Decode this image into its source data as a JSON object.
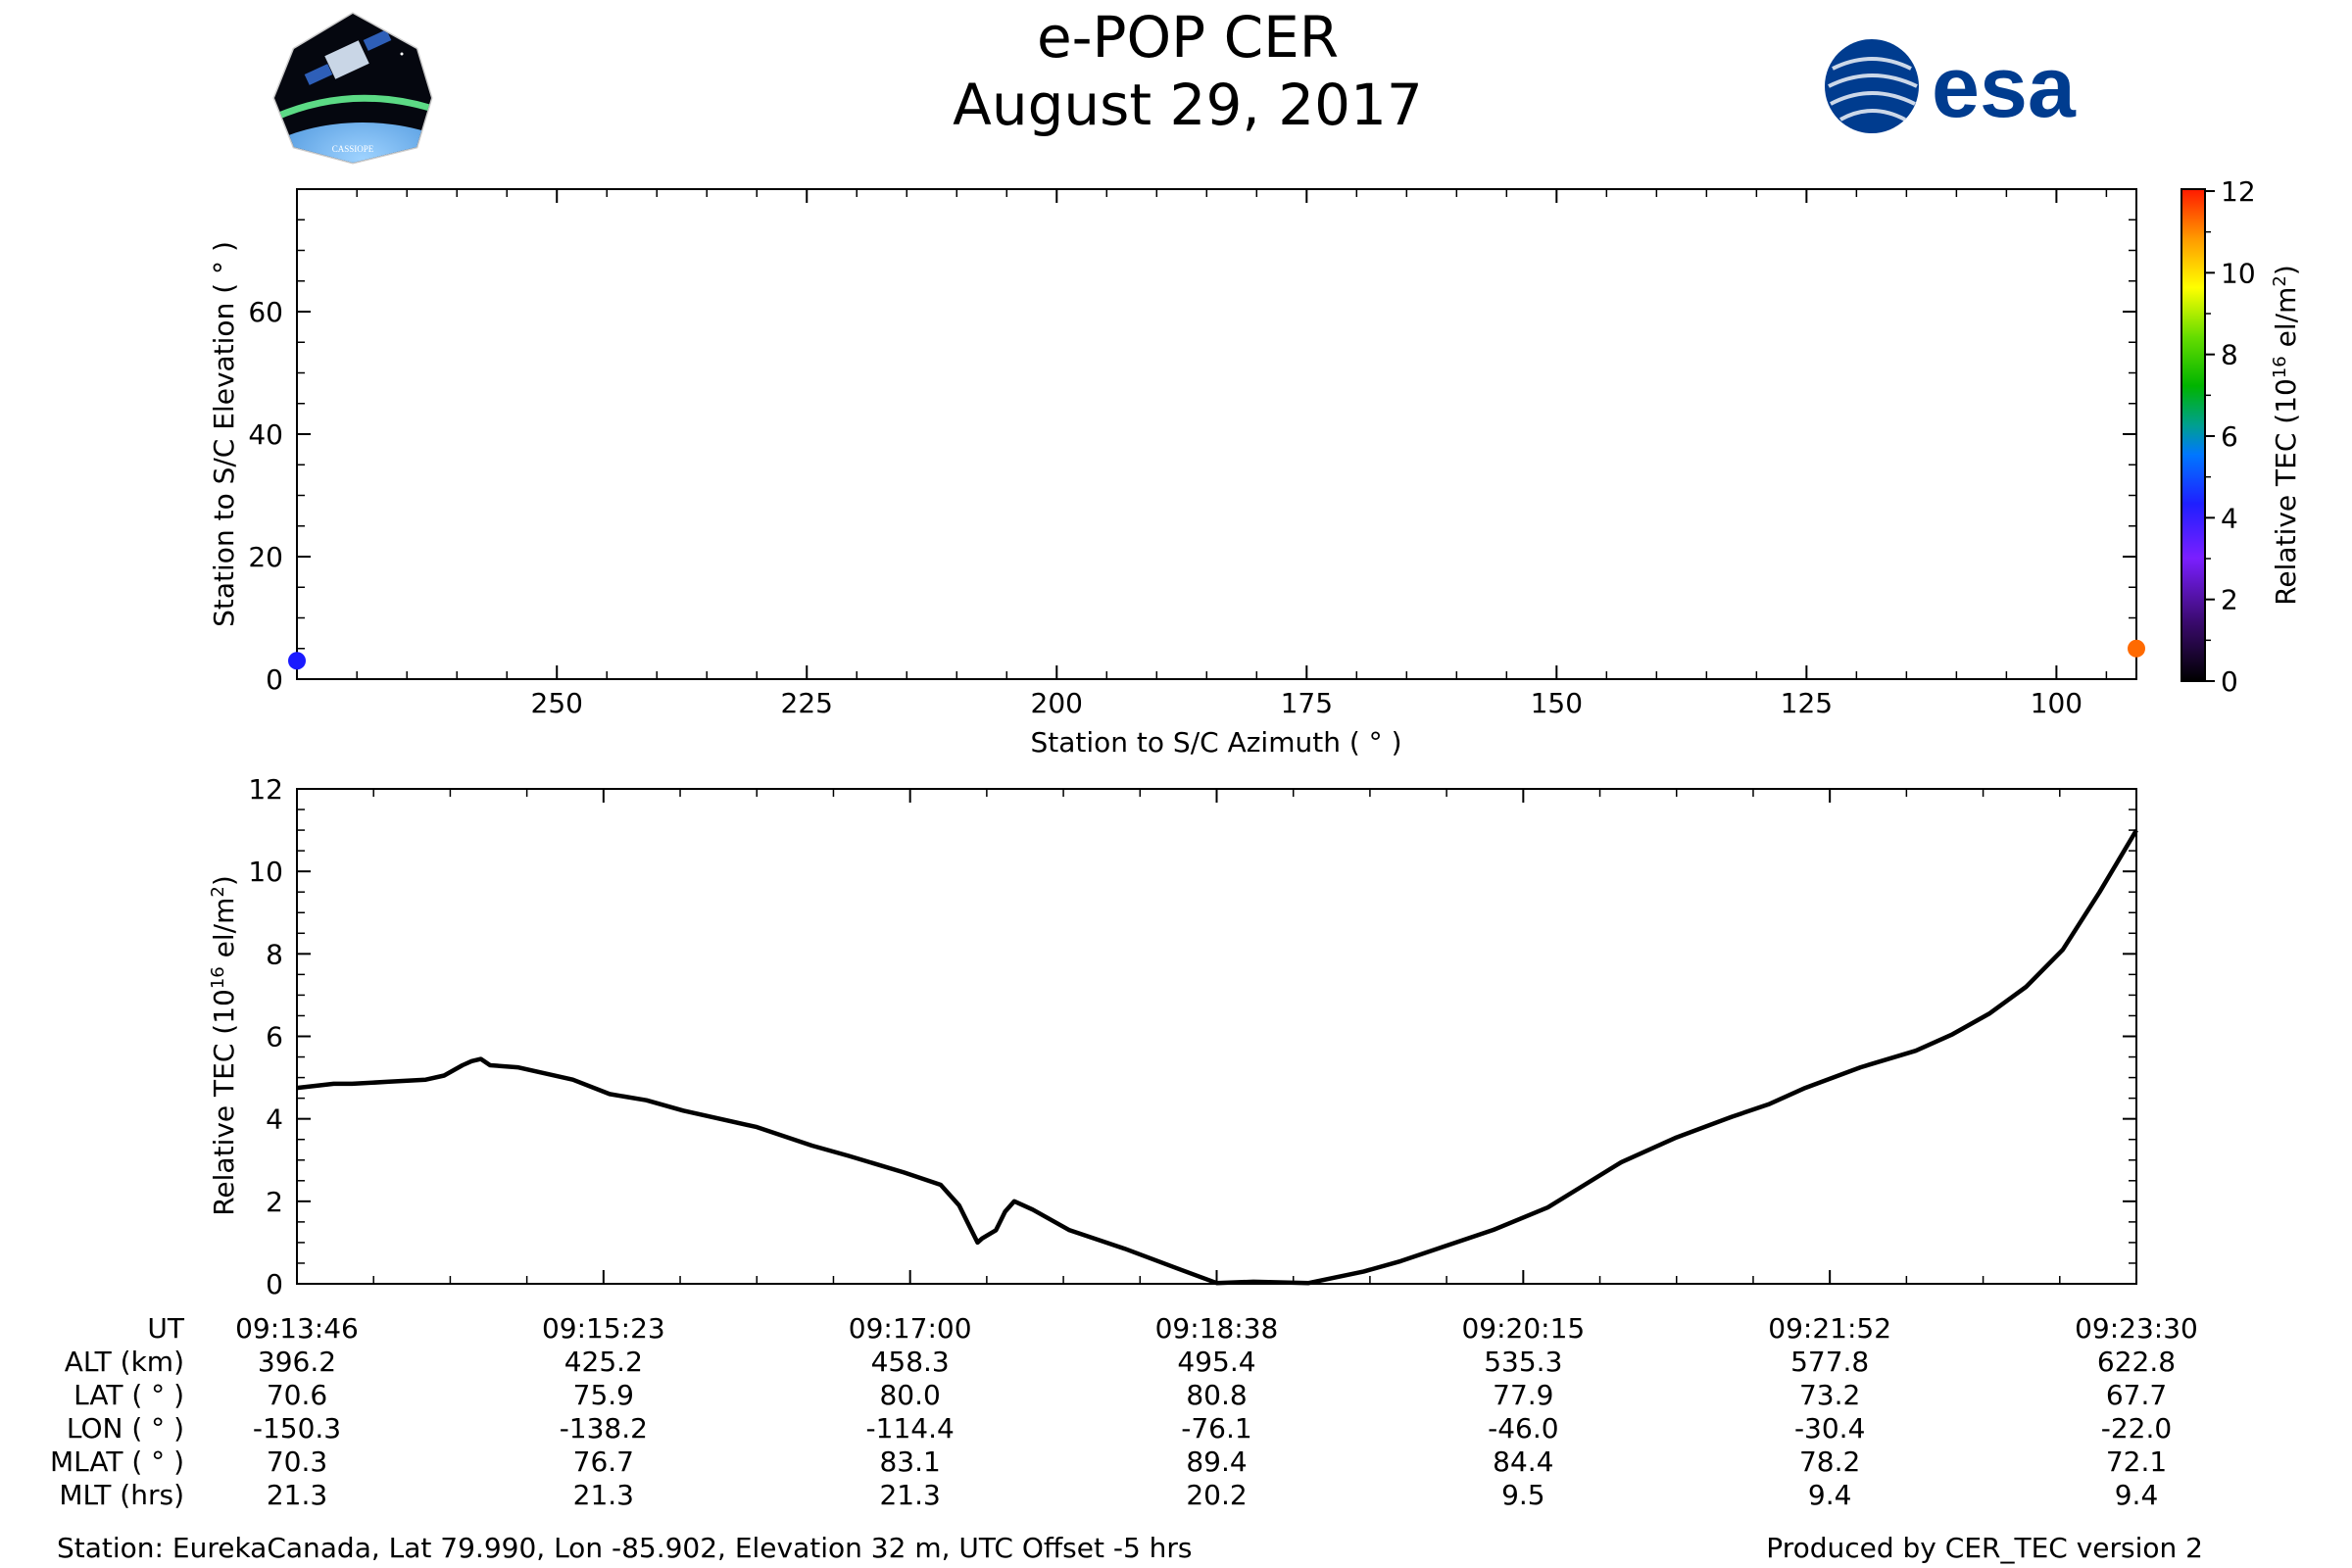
{
  "header": {
    "title": "e-POP CER",
    "date": "August 29, 2017",
    "left_logo_icon": "cassiope-satellite-logo",
    "left_logo_text": "CASSIOPE",
    "right_logo_icon": "esa-logo",
    "right_logo_text": "esa"
  },
  "colors": {
    "line": "#000000",
    "blue_marker": "#1a1aff",
    "orange_marker": "#ff6a00",
    "esa_blue": "#003c8f"
  },
  "chart_data": [
    {
      "id": "elevation-vs-azimuth",
      "type": "scatter",
      "xlabel": "Station to S/C Azimuth ( ° )",
      "ylabel": "Station to S/C Elevation ( ° )",
      "xlim": [
        276,
        92
      ],
      "ylim": [
        0,
        80
      ],
      "xticks": [
        250,
        225,
        200,
        175,
        150,
        125,
        100
      ],
      "yticks": [
        0,
        20,
        40,
        60
      ],
      "points": [
        {
          "az": 276,
          "el": 3,
          "tec": 4.8
        },
        {
          "az": 92,
          "el": 5,
          "tec": 11
        }
      ],
      "colorbar": {
        "label": "Relative TEC (10",
        "label_sup": "16",
        "label_end": " el/m",
        "label_sup2": "2",
        "label_close": ")",
        "range": [
          0,
          12
        ],
        "ticks": [
          0,
          2,
          4,
          6,
          8,
          10,
          12
        ]
      }
    },
    {
      "id": "tec-vs-time",
      "type": "line",
      "xlabel": "",
      "ylabel": "Relative TEC (10",
      "ylabel_sup": "16",
      "ylabel_end": " el/m",
      "ylabel_sup2": "2",
      "ylabel_close": ")",
      "xlim": [
        0,
        1
      ],
      "ylim": [
        0,
        12
      ],
      "yticks": [
        0,
        2,
        4,
        6,
        8,
        10,
        12
      ],
      "x": [
        0,
        0.01,
        0.02,
        0.03,
        0.05,
        0.07,
        0.08,
        0.09,
        0.095,
        0.1,
        0.105,
        0.12,
        0.15,
        0.17,
        0.19,
        0.21,
        0.25,
        0.28,
        0.3,
        0.33,
        0.35,
        0.36,
        0.365,
        0.37,
        0.3725,
        0.38,
        0.385,
        0.39,
        0.4,
        0.42,
        0.45,
        0.48,
        0.5,
        0.52,
        0.55,
        0.58,
        0.6,
        0.62,
        0.65,
        0.68,
        0.7,
        0.72,
        0.75,
        0.78,
        0.8,
        0.82,
        0.85,
        0.88,
        0.9,
        0.92,
        0.94,
        0.96,
        0.98,
        1.0
      ],
      "values": [
        4.75,
        4.8,
        4.85,
        4.85,
        4.9,
        4.95,
        5.05,
        5.3,
        5.4,
        5.45,
        5.3,
        5.25,
        4.95,
        4.6,
        4.45,
        4.2,
        3.8,
        3.35,
        3.1,
        2.7,
        2.4,
        1.9,
        1.45,
        1.0,
        1.1,
        1.3,
        1.75,
        2.0,
        1.8,
        1.3,
        0.85,
        0.35,
        0.02,
        0.05,
        0.02,
        0.3,
        0.55,
        0.85,
        1.3,
        1.85,
        2.4,
        2.95,
        3.55,
        4.05,
        4.35,
        4.75,
        5.25,
        5.65,
        6.05,
        6.55,
        7.2,
        8.1,
        9.5,
        11.0
      ]
    }
  ],
  "ephemeris": {
    "labels": [
      "UT",
      "ALT (km)",
      "LAT ( ° )",
      "LON ( ° )",
      "MLAT ( ° )",
      "MLT (hrs)"
    ],
    "columns": [
      [
        "09:13:46",
        "396.2",
        "70.6",
        "-150.3",
        "70.3",
        "21.3"
      ],
      [
        "09:15:23",
        "425.2",
        "75.9",
        "-138.2",
        "76.7",
        "21.3"
      ],
      [
        "09:17:00",
        "458.3",
        "80.0",
        "-114.4",
        "83.1",
        "21.3"
      ],
      [
        "09:18:38",
        "495.4",
        "80.8",
        "-76.1",
        "89.4",
        "20.2"
      ],
      [
        "09:20:15",
        "535.3",
        "77.9",
        "-46.0",
        "84.4",
        "9.5"
      ],
      [
        "09:21:52",
        "577.8",
        "73.2",
        "-30.4",
        "78.2",
        "9.4"
      ],
      [
        "09:23:30",
        "622.8",
        "67.7",
        "-22.0",
        "72.1",
        "9.4"
      ]
    ]
  },
  "footer": {
    "station": "Station: EurekaCanada, Lat 79.990, Lon -85.902, Elevation 32 m, UTC Offset -5 hrs",
    "produced_by": "Produced by CER_TEC version 2"
  }
}
